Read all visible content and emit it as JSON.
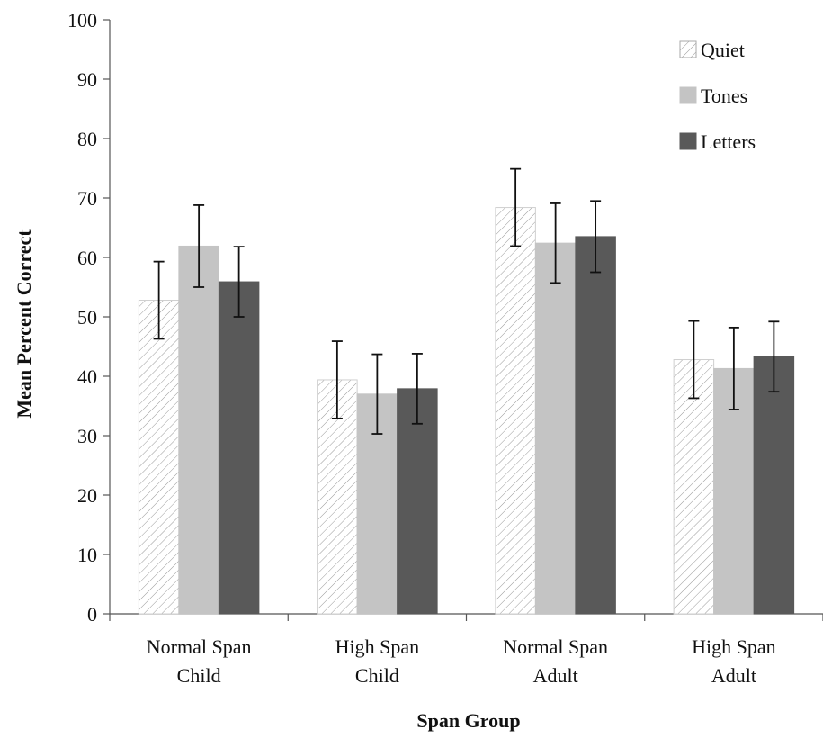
{
  "chart_data": {
    "type": "bar",
    "title": "",
    "xlabel": "Span Group",
    "ylabel": "Mean Percent Correct",
    "ylim": [
      0,
      100
    ],
    "yticks": [
      0,
      10,
      20,
      30,
      40,
      50,
      60,
      70,
      80,
      90,
      100
    ],
    "grid": false,
    "legend_position": "top-right",
    "categories": [
      [
        "Normal Span",
        "Child"
      ],
      [
        "High Span",
        "Child"
      ],
      [
        "Normal Span",
        "Adult"
      ],
      [
        "High Span",
        "Adult"
      ]
    ],
    "series": [
      {
        "name": "Quiet",
        "pattern": "hatched",
        "color": "#ffffff",
        "values": [
          52.8,
          39.4,
          68.4,
          42.8
        ],
        "error": [
          6.5,
          6.5,
          6.5,
          6.5
        ]
      },
      {
        "name": "Tones",
        "pattern": "solid",
        "color": "#c4c4c4",
        "values": [
          61.9,
          37.0,
          62.4,
          41.3
        ],
        "error": [
          6.9,
          6.7,
          6.7,
          6.9
        ]
      },
      {
        "name": "Letters",
        "pattern": "solid",
        "color": "#595959",
        "values": [
          55.9,
          37.9,
          63.5,
          43.3
        ],
        "error": [
          5.9,
          5.9,
          6.0,
          5.9
        ]
      }
    ]
  }
}
